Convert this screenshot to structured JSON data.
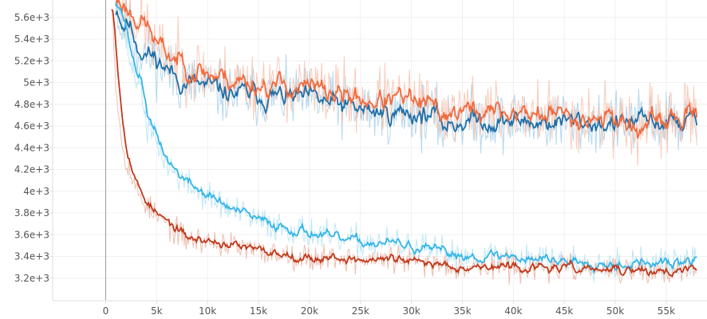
{
  "chart_data": {
    "type": "line",
    "xlim": [
      -5200,
      59000
    ],
    "ylim": [
      3000,
      5760
    ],
    "x_ticks": [
      0,
      5000,
      10000,
      15000,
      20000,
      25000,
      30000,
      35000,
      40000,
      45000,
      50000,
      55000
    ],
    "x_tick_labels": [
      "0",
      "5k",
      "10k",
      "15k",
      "20k",
      "25k",
      "30k",
      "35k",
      "40k",
      "45k",
      "50k",
      "55k"
    ],
    "y_ticks": [
      3200,
      3400,
      3600,
      3800,
      4000,
      4200,
      4400,
      4600,
      4800,
      5000,
      5200,
      5400,
      5600
    ],
    "y_tick_labels": [
      "3.2e+3",
      "3.4e+3",
      "3.6e+3",
      "3.8e+3",
      "4e+3",
      "4.2e+3",
      "4.4e+3",
      "4.6e+3",
      "4.8e+3",
      "5e+3",
      "5.2e+3",
      "5.4e+3",
      "5.6e+3"
    ],
    "grid": true,
    "x_range_plotted": [
      0,
      58000
    ],
    "series": [
      {
        "color": "#1f6fa8",
        "raw_color": "#9ccbe8",
        "noise": 140,
        "seed": 11,
        "points": [
          [
            1000,
            5800
          ],
          [
            1500,
            5450
          ],
          [
            2000,
            5600
          ],
          [
            3000,
            5300
          ],
          [
            4000,
            5260
          ],
          [
            5000,
            5200
          ],
          [
            6000,
            5100
          ],
          [
            7000,
            5010
          ],
          [
            8000,
            5000
          ],
          [
            10000,
            4940
          ],
          [
            12000,
            4900
          ],
          [
            15000,
            4880
          ],
          [
            18000,
            4860
          ],
          [
            20000,
            4840
          ],
          [
            22000,
            4800
          ],
          [
            25000,
            4740
          ],
          [
            28000,
            4720
          ],
          [
            30000,
            4720
          ],
          [
            32000,
            4700
          ],
          [
            33000,
            4600
          ],
          [
            35000,
            4660
          ],
          [
            40000,
            4640
          ],
          [
            45000,
            4640
          ],
          [
            50000,
            4620
          ],
          [
            55000,
            4640
          ],
          [
            58000,
            4640
          ]
        ]
      },
      {
        "color": "#f26a3d",
        "raw_color": "#f8b9a2",
        "noise": 150,
        "seed": 23,
        "points": [
          [
            1000,
            5800
          ],
          [
            2000,
            5650
          ],
          [
            3000,
            5600
          ],
          [
            4000,
            5500
          ],
          [
            5000,
            5300
          ],
          [
            6000,
            5250
          ],
          [
            7000,
            5200
          ],
          [
            8000,
            5150
          ],
          [
            10000,
            5080
          ],
          [
            12000,
            5030
          ],
          [
            15000,
            4980
          ],
          [
            18000,
            4960
          ],
          [
            20000,
            4940
          ],
          [
            22000,
            4900
          ],
          [
            25000,
            4840
          ],
          [
            28000,
            4840
          ],
          [
            30000,
            4820
          ],
          [
            33000,
            4720
          ],
          [
            35000,
            4740
          ],
          [
            40000,
            4720
          ],
          [
            45000,
            4700
          ],
          [
            50000,
            4680
          ],
          [
            52000,
            4560
          ],
          [
            55000,
            4660
          ],
          [
            58000,
            4660
          ]
        ]
      },
      {
        "color": "#33b5e8",
        "raw_color": "#a9dff5",
        "noise": 70,
        "seed": 37,
        "points": [
          [
            1000,
            5800
          ],
          [
            1800,
            5500
          ],
          [
            2500,
            5150
          ],
          [
            3500,
            4950
          ],
          [
            4000,
            4600
          ],
          [
            5000,
            4450
          ],
          [
            6000,
            4250
          ],
          [
            7000,
            4150
          ],
          [
            8000,
            4060
          ],
          [
            10000,
            3950
          ],
          [
            12000,
            3840
          ],
          [
            15000,
            3720
          ],
          [
            18000,
            3660
          ],
          [
            20000,
            3620
          ],
          [
            22000,
            3560
          ],
          [
            25000,
            3530
          ],
          [
            28000,
            3520
          ],
          [
            30000,
            3480
          ],
          [
            33000,
            3430
          ],
          [
            35000,
            3410
          ],
          [
            40000,
            3400
          ],
          [
            45000,
            3360
          ],
          [
            50000,
            3340
          ],
          [
            55000,
            3330
          ],
          [
            58000,
            3360
          ]
        ]
      },
      {
        "color": "#c0391b",
        "raw_color": "#eba896",
        "noise": 60,
        "seed": 53,
        "points": [
          [
            600,
            5800
          ],
          [
            1000,
            5000
          ],
          [
            1500,
            4500
          ],
          [
            2000,
            4300
          ],
          [
            3000,
            4000
          ],
          [
            4000,
            3880
          ],
          [
            5000,
            3760
          ],
          [
            6000,
            3700
          ],
          [
            7000,
            3620
          ],
          [
            8000,
            3560
          ],
          [
            10000,
            3540
          ],
          [
            12000,
            3510
          ],
          [
            15000,
            3440
          ],
          [
            18000,
            3420
          ],
          [
            20000,
            3380
          ],
          [
            22000,
            3400
          ],
          [
            25000,
            3360
          ],
          [
            28000,
            3380
          ],
          [
            30000,
            3340
          ],
          [
            33000,
            3330
          ],
          [
            35000,
            3310
          ],
          [
            40000,
            3300
          ],
          [
            45000,
            3290
          ],
          [
            50000,
            3270
          ],
          [
            55000,
            3260
          ],
          [
            58000,
            3270
          ]
        ]
      }
    ]
  }
}
